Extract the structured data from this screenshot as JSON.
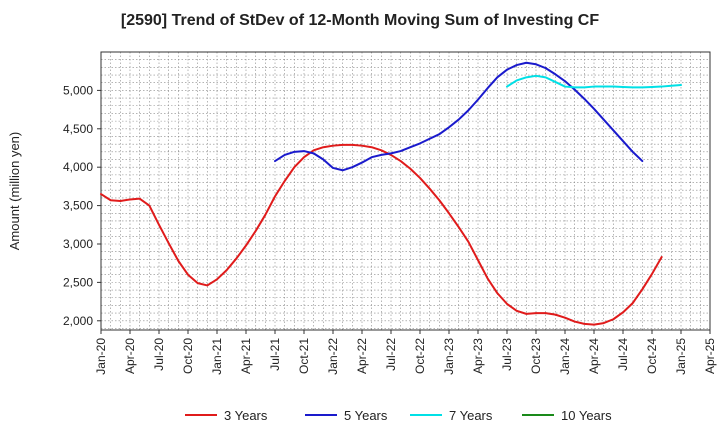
{
  "chart_data": {
    "type": "line",
    "title": "[2590]  Trend of StDev of 12-Month Moving Sum of Investing CF",
    "ylabel": "Amount (million yen)",
    "xlabel": "",
    "ylim": [
      1880,
      5500
    ],
    "yticks": [
      2000,
      2500,
      3000,
      3500,
      4000,
      4500,
      5000
    ],
    "ytick_labels": [
      "2,000",
      "2,500",
      "3,000",
      "3,500",
      "4,000",
      "4,500",
      "5,000"
    ],
    "x_start": "Jan-20",
    "x_end": "Apr-25",
    "xtick_labels": [
      "Jan-20",
      "Apr-20",
      "Jul-20",
      "Oct-20",
      "Jan-21",
      "Apr-21",
      "Jul-21",
      "Oct-21",
      "Jan-22",
      "Apr-22",
      "Jul-22",
      "Oct-22",
      "Jan-23",
      "Apr-23",
      "Jul-23",
      "Oct-23",
      "Jan-24",
      "Apr-24",
      "Jul-24",
      "Oct-24",
      "Jan-25",
      "Apr-25"
    ],
    "grid": true,
    "legend_position": "bottom",
    "series": [
      {
        "name": "3 Years",
        "color": "#e01b1b",
        "start": "Jan-20",
        "values": [
          3650,
          3570,
          3560,
          3580,
          3590,
          3500,
          3250,
          3010,
          2780,
          2600,
          2490,
          2460,
          2540,
          2660,
          2810,
          2980,
          3170,
          3380,
          3620,
          3820,
          4000,
          4130,
          4220,
          4260,
          4280,
          4290,
          4290,
          4280,
          4260,
          4220,
          4160,
          4080,
          3980,
          3860,
          3720,
          3570,
          3400,
          3220,
          3030,
          2790,
          2550,
          2360,
          2220,
          2130,
          2090,
          2100,
          2100,
          2080,
          2040,
          1990,
          1960,
          1950,
          1970,
          2020,
          2110,
          2230,
          2410,
          2610,
          2830
        ]
      },
      {
        "name": "5 Years",
        "color": "#1a1acc",
        "start": "Jul-21",
        "values": [
          4080,
          4160,
          4200,
          4210,
          4180,
          4100,
          3990,
          3960,
          4000,
          4060,
          4130,
          4160,
          4180,
          4210,
          4260,
          4310,
          4370,
          4430,
          4520,
          4620,
          4740,
          4880,
          5030,
          5170,
          5270,
          5330,
          5360,
          5340,
          5290,
          5210,
          5120,
          5010,
          4890,
          4760,
          4620,
          4480,
          4340,
          4200,
          4080
        ]
      },
      {
        "name": "7 Years",
        "color": "#00e0e6",
        "start": "Jul-23",
        "values": [
          5050,
          5130,
          5170,
          5190,
          5170,
          5110,
          5050,
          5040,
          5040,
          5050,
          5050,
          5050,
          5045,
          5040,
          5040,
          5045,
          5050,
          5060,
          5070
        ]
      },
      {
        "name": "10 Years",
        "color": "#1a8a1a",
        "start": "Jan-25",
        "values": []
      }
    ]
  }
}
